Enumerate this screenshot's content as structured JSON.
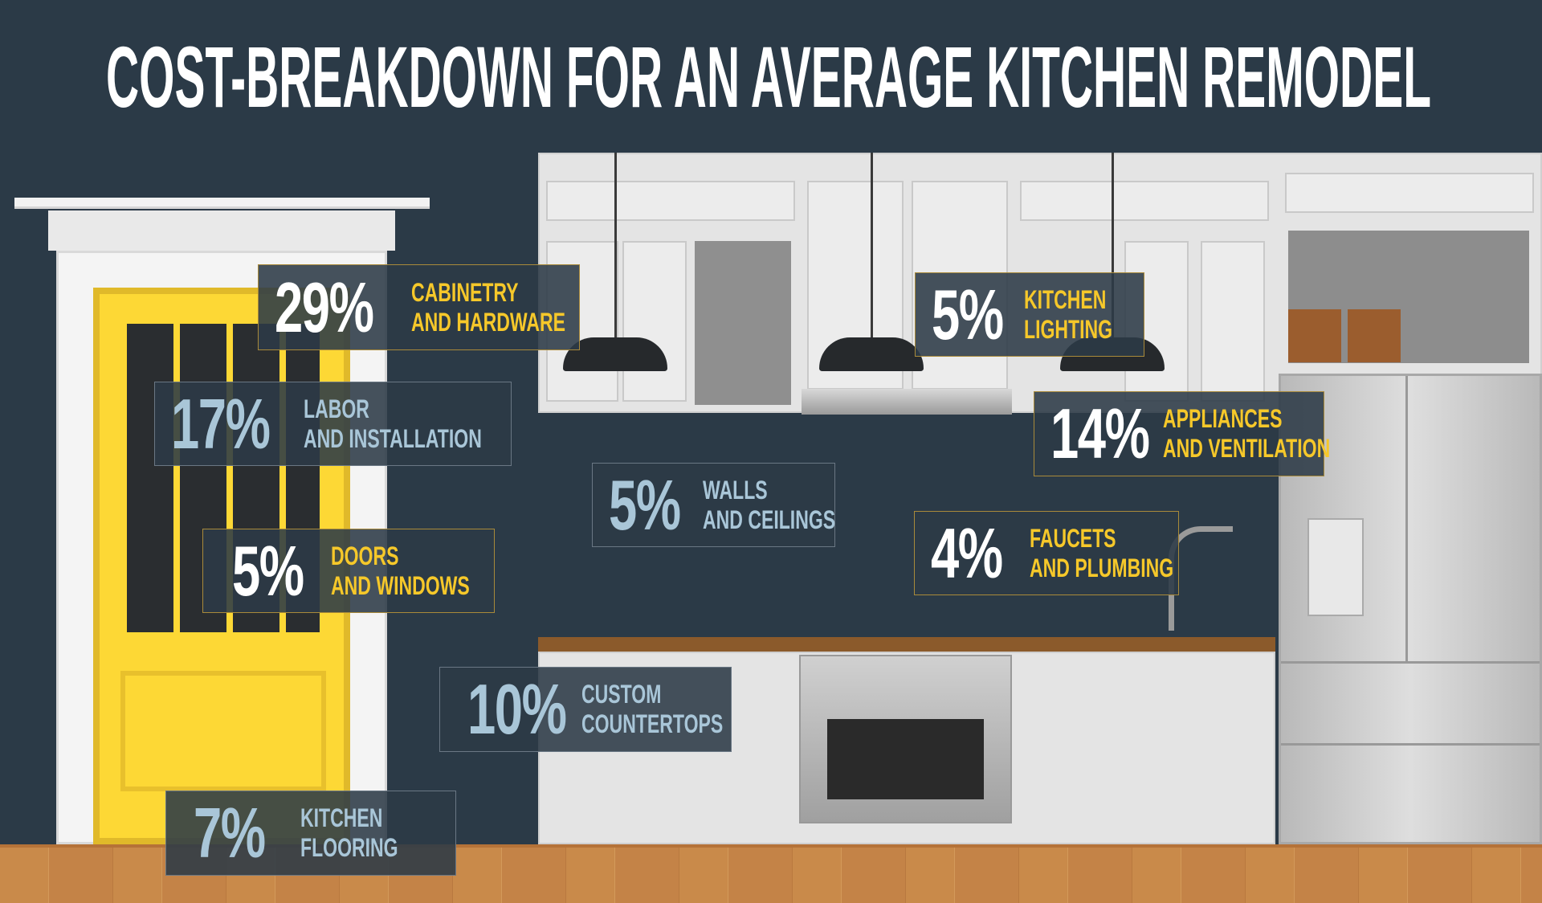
{
  "title": "COST-BREAKDOWN FOR AN AVERAGE KITCHEN REMODEL",
  "colors": {
    "background": "#2b3a47",
    "accent_yellow": "#f6c82a",
    "accent_blue": "#a9c6d8",
    "door": "#fdd835"
  },
  "items": [
    {
      "percent": "29%",
      "line1": "CABINETRY",
      "line2": "AND HARDWARE",
      "style": "yellow"
    },
    {
      "percent": "17%",
      "line1": "LABOR",
      "line2": "AND INSTALLATION",
      "style": "blue"
    },
    {
      "percent": "5%",
      "line1": "KITCHEN",
      "line2": "LIGHTING",
      "style": "yellow"
    },
    {
      "percent": "14%",
      "line1": "APPLIANCES",
      "line2": "AND VENTILATION",
      "style": "yellow"
    },
    {
      "percent": "5%",
      "line1": "WALLS",
      "line2": "AND CEILINGS",
      "style": "blue"
    },
    {
      "percent": "4%",
      "line1": "FAUCETS",
      "line2": "AND PLUMBING",
      "style": "yellow"
    },
    {
      "percent": "5%",
      "line1": "DOORS",
      "line2": "AND WINDOWS",
      "style": "yellow"
    },
    {
      "percent": "10%",
      "line1": "CUSTOM",
      "line2": "COUNTERTOPS",
      "style": "blue"
    },
    {
      "percent": "7%",
      "line1": "KITCHEN",
      "line2": "FLOORING",
      "style": "blue"
    }
  ]
}
